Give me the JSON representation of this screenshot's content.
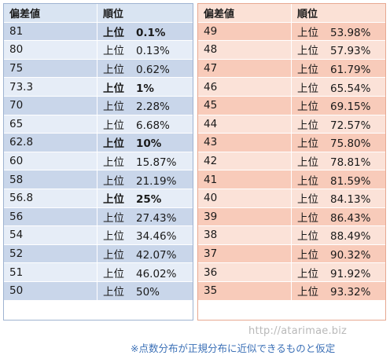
{
  "left": {
    "header": {
      "score": "偏差値",
      "rank": "順位"
    },
    "rows": [
      {
        "score": "81",
        "prefix": "上位",
        "value": "0.1%",
        "bold": true
      },
      {
        "score": "80",
        "prefix": "上位",
        "value": "0.13%",
        "bold": false
      },
      {
        "score": "75",
        "prefix": "上位",
        "value": "0.62%",
        "bold": false
      },
      {
        "score": "73.3",
        "prefix": "上位",
        "value": "1%",
        "bold": true
      },
      {
        "score": "70",
        "prefix": "上位",
        "value": "2.28%",
        "bold": false
      },
      {
        "score": "65",
        "prefix": "上位",
        "value": "6.68%",
        "bold": false
      },
      {
        "score": "62.8",
        "prefix": "上位",
        "value": "10%",
        "bold": true
      },
      {
        "score": "60",
        "prefix": "上位",
        "value": "15.87%",
        "bold": false
      },
      {
        "score": "58",
        "prefix": "上位",
        "value": "21.19%",
        "bold": false
      },
      {
        "score": "56.8",
        "prefix": "上位",
        "value": "25%",
        "bold": true
      },
      {
        "score": "56",
        "prefix": "上位",
        "value": "27.43%",
        "bold": false
      },
      {
        "score": "54",
        "prefix": "上位",
        "value": "34.46%",
        "bold": false
      },
      {
        "score": "52",
        "prefix": "上位",
        "value": "42.07%",
        "bold": false
      },
      {
        "score": "51",
        "prefix": "上位",
        "value": "46.02%",
        "bold": false
      },
      {
        "score": "50",
        "prefix": "上位",
        "value": "50%",
        "bold": false
      }
    ]
  },
  "right": {
    "header": {
      "score": "偏差値",
      "rank": "順位"
    },
    "rows": [
      {
        "score": "49",
        "prefix": "上位",
        "value": "53.98%"
      },
      {
        "score": "48",
        "prefix": "上位",
        "value": "57.93%"
      },
      {
        "score": "47",
        "prefix": "上位",
        "value": "61.79%"
      },
      {
        "score": "46",
        "prefix": "上位",
        "value": "65.54%"
      },
      {
        "score": "45",
        "prefix": "上位",
        "value": "69.15%"
      },
      {
        "score": "44",
        "prefix": "上位",
        "value": "72.57%"
      },
      {
        "score": "43",
        "prefix": "上位",
        "value": "75.80%"
      },
      {
        "score": "42",
        "prefix": "上位",
        "value": "78.81%"
      },
      {
        "score": "41",
        "prefix": "上位",
        "value": "81.59%"
      },
      {
        "score": "40",
        "prefix": "上位",
        "value": "84.13%"
      },
      {
        "score": "39",
        "prefix": "上位",
        "value": "86.43%"
      },
      {
        "score": "38",
        "prefix": "上位",
        "value": "88.49%"
      },
      {
        "score": "37",
        "prefix": "上位",
        "value": "90.32%"
      },
      {
        "score": "36",
        "prefix": "上位",
        "value": "91.92%"
      },
      {
        "score": "35",
        "prefix": "上位",
        "value": "93.32%"
      }
    ]
  },
  "watermark": "http://atarimae.biz",
  "note": "※点数分布が正規分布に近似できるものと仮定",
  "colors": {
    "left_header": "#d9e4f2",
    "left_band_dark": "#c9d6ea",
    "left_band_light": "#e6edf7",
    "right_header": "#fbe1d6",
    "right_band_dark": "#f8cbba",
    "right_band_light": "#fbe2d8",
    "note_text": "#3a6fb6"
  }
}
